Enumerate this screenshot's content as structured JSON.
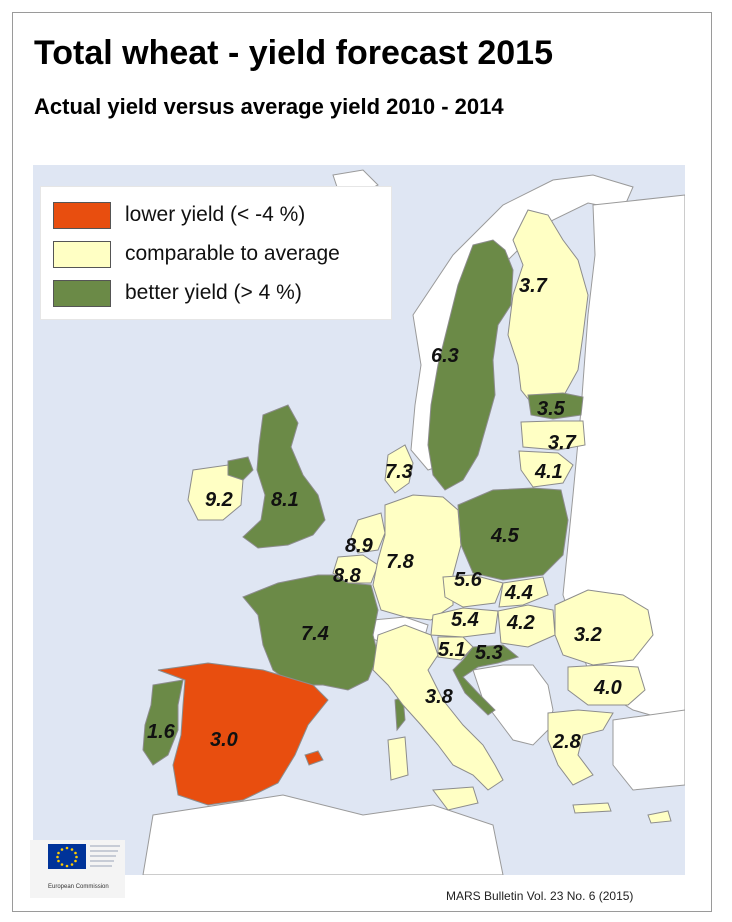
{
  "title": "Total wheat - yield forecast 2015",
  "subtitle": "Actual yield versus average yield 2010 - 2014",
  "legend": [
    {
      "label": "lower yield (< -4 %)",
      "color": "#e84e0f"
    },
    {
      "label": "comparable to average",
      "color": "#ffffc4"
    },
    {
      "label": "better yield (> 4 %)",
      "color": "#6b8a47"
    }
  ],
  "colors": {
    "lower": "#e84e0f",
    "comparable": "#ffffc4",
    "better": "#6b8a47",
    "sea": "#dfe6f3",
    "non_eu_land": "#ffffff"
  },
  "regions": [
    {
      "name": "Finland",
      "value": "3.7",
      "category": "comparable"
    },
    {
      "name": "Sweden",
      "value": "6.3",
      "category": "better"
    },
    {
      "name": "Estonia",
      "value": "3.5",
      "category": "better"
    },
    {
      "name": "Latvia",
      "value": "3.7",
      "category": "comparable"
    },
    {
      "name": "Lithuania",
      "value": "4.1",
      "category": "comparable"
    },
    {
      "name": "Denmark",
      "value": "7.3",
      "category": "comparable"
    },
    {
      "name": "Ireland",
      "value": "9.2",
      "category": "comparable"
    },
    {
      "name": "United Kingdom",
      "value": "8.1",
      "category": "better"
    },
    {
      "name": "Netherlands",
      "value": "8.9",
      "category": "comparable"
    },
    {
      "name": "Belgium",
      "value": "8.8",
      "category": "comparable"
    },
    {
      "name": "Germany",
      "value": "7.8",
      "category": "comparable"
    },
    {
      "name": "Poland",
      "value": "4.5",
      "category": "better"
    },
    {
      "name": "Czech Republic",
      "value": "5.6",
      "category": "comparable"
    },
    {
      "name": "Slovakia",
      "value": "4.4",
      "category": "comparable"
    },
    {
      "name": "Austria",
      "value": "5.4",
      "category": "comparable"
    },
    {
      "name": "Hungary",
      "value": "4.2",
      "category": "comparable"
    },
    {
      "name": "Slovenia",
      "value": "5.1",
      "category": "comparable"
    },
    {
      "name": "Croatia",
      "value": "5.3",
      "category": "better"
    },
    {
      "name": "Romania",
      "value": "3.2",
      "category": "comparable"
    },
    {
      "name": "Bulgaria",
      "value": "4.0",
      "category": "comparable"
    },
    {
      "name": "France",
      "value": "7.4",
      "category": "better"
    },
    {
      "name": "Italy",
      "value": "3.8",
      "category": "comparable"
    },
    {
      "name": "Greece",
      "value": "2.8",
      "category": "comparable"
    },
    {
      "name": "Portugal",
      "value": "1.6",
      "category": "better"
    },
    {
      "name": "Spain",
      "value": "3.0",
      "category": "lower"
    }
  ],
  "logo_text": "European Commission",
  "source": "MARS Bulletin Vol. 23 No. 6 (2015)"
}
